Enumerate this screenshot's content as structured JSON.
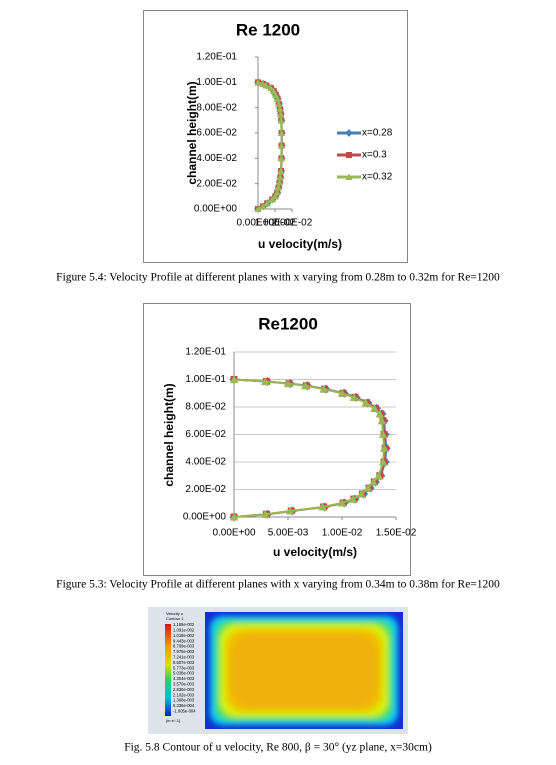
{
  "chart_data": [
    {
      "type": "line",
      "title": "Re 1200",
      "xlabel": "u velocity(m/s)",
      "ylabel": "channel height(m)",
      "xlim": [
        0,
        0.02
      ],
      "ylim": [
        0,
        0.12
      ],
      "xticks": [
        {
          "value": 0,
          "label": "0.00E+00"
        },
        {
          "value": 0.01,
          "label": "1.00E-02"
        },
        {
          "value": 0.02,
          "label": "2.00E-02"
        }
      ],
      "yticks": [
        {
          "value": 0,
          "label": "0.00E+00"
        },
        {
          "value": 0.02,
          "label": "2.00E-02"
        },
        {
          "value": 0.04,
          "label": "4.00E-02"
        },
        {
          "value": 0.06,
          "label": "6.00E-02"
        },
        {
          "value": 0.08,
          "label": "8.00E-02"
        },
        {
          "value": 0.1,
          "label": "1.00E-01"
        },
        {
          "value": 0.12,
          "label": "1.20E-01"
        }
      ],
      "grid": false,
      "legend": "right",
      "series": [
        {
          "name": "x=0.28",
          "color": "#4a7ebb",
          "marker": "diamond",
          "x": [
            0,
            0.003,
            0.0055,
            0.0085,
            0.0103,
            0.0114,
            0.0122,
            0.0128,
            0.0133,
            0.0137,
            0.0139,
            0.014,
            0.014,
            0.0138,
            0.0135,
            0.013,
            0.0124,
            0.0116,
            0.0106,
            0.0094,
            0.0077,
            0.005,
            0.003,
            0
          ],
          "values": [
            0,
            0.002,
            0.0045,
            0.0075,
            0.01,
            0.013,
            0.017,
            0.021,
            0.025,
            0.03,
            0.04,
            0.05,
            0.06,
            0.07,
            0.075,
            0.079,
            0.083,
            0.087,
            0.09,
            0.093,
            0.0955,
            0.0975,
            0.0988,
            0.1
          ]
        },
        {
          "name": "x=0.3",
          "color": "#be4b48",
          "marker": "square",
          "x": [
            0,
            0.0029,
            0.0054,
            0.0084,
            0.0102,
            0.0113,
            0.0121,
            0.0127,
            0.0132,
            0.0136,
            0.0138,
            0.0139,
            0.0139,
            0.0137,
            0.0134,
            0.0129,
            0.0123,
            0.0115,
            0.0105,
            0.0093,
            0.0076,
            0.0049,
            0.0029,
            0
          ],
          "values": [
            0,
            0.002,
            0.0045,
            0.0075,
            0.01,
            0.013,
            0.017,
            0.021,
            0.025,
            0.03,
            0.04,
            0.05,
            0.06,
            0.07,
            0.075,
            0.079,
            0.083,
            0.087,
            0.09,
            0.093,
            0.0955,
            0.0975,
            0.0988,
            0.1
          ]
        },
        {
          "name": "x=0.32",
          "color": "#98b954",
          "marker": "triangle",
          "x": [
            0,
            0.0028,
            0.0053,
            0.0083,
            0.0101,
            0.0112,
            0.012,
            0.0126,
            0.0131,
            0.0135,
            0.0137,
            0.0138,
            0.0138,
            0.0136,
            0.0133,
            0.0128,
            0.0122,
            0.0114,
            0.0104,
            0.0092,
            0.0075,
            0.0048,
            0.0028,
            0
          ],
          "values": [
            0,
            0.002,
            0.0045,
            0.0075,
            0.01,
            0.013,
            0.017,
            0.021,
            0.025,
            0.03,
            0.04,
            0.05,
            0.06,
            0.07,
            0.075,
            0.079,
            0.083,
            0.087,
            0.09,
            0.093,
            0.0955,
            0.0975,
            0.0988,
            0.1
          ]
        }
      ]
    },
    {
      "type": "line",
      "title": "Re1200",
      "xlabel": "u velocity(m/s)",
      "ylabel": "channel height(m)",
      "xlim": [
        0,
        0.015
      ],
      "ylim": [
        0,
        0.12
      ],
      "xticks": [
        {
          "value": 0,
          "label": "0.00E+00"
        },
        {
          "value": 0.005,
          "label": "5.00E-03"
        },
        {
          "value": 0.01,
          "label": "1.00E-02"
        },
        {
          "value": 0.015,
          "label": "1.50E-02"
        }
      ],
      "yticks": [
        {
          "value": 0,
          "label": "0.00E+00"
        },
        {
          "value": 0.02,
          "label": "2.00E-02"
        },
        {
          "value": 0.04,
          "label": "4.00E-02"
        },
        {
          "value": 0.06,
          "label": "6.00E-02"
        },
        {
          "value": 0.08,
          "label": "8.00E-02"
        },
        {
          "value": 0.1,
          "label": "1.00E-01"
        },
        {
          "value": 0.12,
          "label": "1.20E-01"
        }
      ],
      "grid": true,
      "series": [
        {
          "color": "#4a7ebb",
          "marker": "diamond",
          "x": [
            0,
            0.0031,
            0.0054,
            0.0084,
            0.0102,
            0.0112,
            0.012,
            0.0126,
            0.0131,
            0.0136,
            0.014,
            0.0141,
            0.014,
            0.0139,
            0.0137,
            0.0132,
            0.0124,
            0.0113,
            0.0102,
            0.0085,
            0.0068,
            0.0052,
            0.0031,
            0
          ],
          "values": [
            0,
            0.002,
            0.0044,
            0.0073,
            0.0102,
            0.013,
            0.0167,
            0.021,
            0.0255,
            0.03,
            0.04,
            0.05,
            0.06,
            0.07,
            0.075,
            0.079,
            0.083,
            0.087,
            0.09,
            0.093,
            0.0955,
            0.097,
            0.0985,
            0.1
          ]
        },
        {
          "color": "#be4b48",
          "marker": "square",
          "x": [
            0,
            0.003,
            0.0053,
            0.0083,
            0.0101,
            0.0111,
            0.0119,
            0.0125,
            0.013,
            0.0135,
            0.0139,
            0.014,
            0.0139,
            0.0138,
            0.0136,
            0.0131,
            0.0123,
            0.0112,
            0.0101,
            0.0084,
            0.0067,
            0.0051,
            0.003,
            0
          ],
          "values": [
            0,
            0.002,
            0.0044,
            0.0073,
            0.0102,
            0.013,
            0.0167,
            0.021,
            0.0255,
            0.03,
            0.04,
            0.05,
            0.06,
            0.07,
            0.075,
            0.079,
            0.083,
            0.087,
            0.09,
            0.093,
            0.0955,
            0.097,
            0.0985,
            0.1
          ]
        },
        {
          "color": "#98b954",
          "marker": "triangle",
          "x": [
            0,
            0.0029,
            0.0052,
            0.0082,
            0.01,
            0.011,
            0.0118,
            0.0124,
            0.0129,
            0.0134,
            0.0138,
            0.0139,
            0.0138,
            0.0137,
            0.0135,
            0.013,
            0.0122,
            0.0111,
            0.01,
            0.0083,
            0.0066,
            0.005,
            0.0029,
            0
          ],
          "values": [
            0,
            0.002,
            0.0044,
            0.0073,
            0.0102,
            0.013,
            0.0167,
            0.021,
            0.0255,
            0.03,
            0.04,
            0.05,
            0.06,
            0.07,
            0.075,
            0.079,
            0.083,
            0.087,
            0.09,
            0.093,
            0.0955,
            0.097,
            0.0985,
            0.1
          ]
        }
      ]
    }
  ],
  "captions": [
    "Figure 5.4: Velocity Profile at different planes with x varying from 0.28m to 0.32m for Re=1200",
    "Figure 5.3: Velocity Profile at different planes with x varying from 0.34m to 0.38m for Re=1200",
    "Fig. 5.8 Contour of u velocity, Re 800, β = 30° (yz plane, x=30cm)"
  ],
  "contour": {
    "title": [
      "Velocity u",
      "Contour 1"
    ],
    "levels": [
      "1.165e-002",
      "1.091e-002",
      "1.018e-002",
      "9.443e-003",
      "8.709e-003",
      "7.975e-003",
      "7.241e-003",
      "6.507e-003",
      "5.773e-003",
      "5.038e-003",
      "4.304e-003",
      "3.570e-003",
      "2.836e-003",
      "2.102e-003",
      "1.368e-003",
      "6.336e-004",
      "-1.005e-004"
    ],
    "unit": "[m s^-1]"
  }
}
